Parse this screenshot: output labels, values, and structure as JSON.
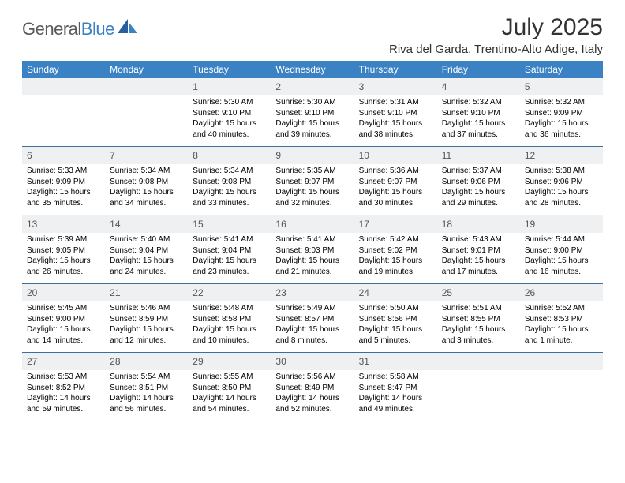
{
  "brand": {
    "part1": "General",
    "part2": "Blue"
  },
  "title": "July 2025",
  "location": "Riva del Garda, Trentino-Alto Adige, Italy",
  "colors": {
    "header_bg": "#3b82c4",
    "header_text": "#ffffff",
    "row_border": "#3b6fa0",
    "daynum_bg": "#eef0f2",
    "page_bg": "#ffffff"
  },
  "day_names": [
    "Sunday",
    "Monday",
    "Tuesday",
    "Wednesday",
    "Thursday",
    "Friday",
    "Saturday"
  ],
  "weeks": [
    [
      {
        "n": "",
        "sr": "",
        "ss": "",
        "dl": ""
      },
      {
        "n": "",
        "sr": "",
        "ss": "",
        "dl": ""
      },
      {
        "n": "1",
        "sr": "5:30 AM",
        "ss": "9:10 PM",
        "dl": "15 hours and 40 minutes."
      },
      {
        "n": "2",
        "sr": "5:30 AM",
        "ss": "9:10 PM",
        "dl": "15 hours and 39 minutes."
      },
      {
        "n": "3",
        "sr": "5:31 AM",
        "ss": "9:10 PM",
        "dl": "15 hours and 38 minutes."
      },
      {
        "n": "4",
        "sr": "5:32 AM",
        "ss": "9:10 PM",
        "dl": "15 hours and 37 minutes."
      },
      {
        "n": "5",
        "sr": "5:32 AM",
        "ss": "9:09 PM",
        "dl": "15 hours and 36 minutes."
      }
    ],
    [
      {
        "n": "6",
        "sr": "5:33 AM",
        "ss": "9:09 PM",
        "dl": "15 hours and 35 minutes."
      },
      {
        "n": "7",
        "sr": "5:34 AM",
        "ss": "9:08 PM",
        "dl": "15 hours and 34 minutes."
      },
      {
        "n": "8",
        "sr": "5:34 AM",
        "ss": "9:08 PM",
        "dl": "15 hours and 33 minutes."
      },
      {
        "n": "9",
        "sr": "5:35 AM",
        "ss": "9:07 PM",
        "dl": "15 hours and 32 minutes."
      },
      {
        "n": "10",
        "sr": "5:36 AM",
        "ss": "9:07 PM",
        "dl": "15 hours and 30 minutes."
      },
      {
        "n": "11",
        "sr": "5:37 AM",
        "ss": "9:06 PM",
        "dl": "15 hours and 29 minutes."
      },
      {
        "n": "12",
        "sr": "5:38 AM",
        "ss": "9:06 PM",
        "dl": "15 hours and 28 minutes."
      }
    ],
    [
      {
        "n": "13",
        "sr": "5:39 AM",
        "ss": "9:05 PM",
        "dl": "15 hours and 26 minutes."
      },
      {
        "n": "14",
        "sr": "5:40 AM",
        "ss": "9:04 PM",
        "dl": "15 hours and 24 minutes."
      },
      {
        "n": "15",
        "sr": "5:41 AM",
        "ss": "9:04 PM",
        "dl": "15 hours and 23 minutes."
      },
      {
        "n": "16",
        "sr": "5:41 AM",
        "ss": "9:03 PM",
        "dl": "15 hours and 21 minutes."
      },
      {
        "n": "17",
        "sr": "5:42 AM",
        "ss": "9:02 PM",
        "dl": "15 hours and 19 minutes."
      },
      {
        "n": "18",
        "sr": "5:43 AM",
        "ss": "9:01 PM",
        "dl": "15 hours and 17 minutes."
      },
      {
        "n": "19",
        "sr": "5:44 AM",
        "ss": "9:00 PM",
        "dl": "15 hours and 16 minutes."
      }
    ],
    [
      {
        "n": "20",
        "sr": "5:45 AM",
        "ss": "9:00 PM",
        "dl": "15 hours and 14 minutes."
      },
      {
        "n": "21",
        "sr": "5:46 AM",
        "ss": "8:59 PM",
        "dl": "15 hours and 12 minutes."
      },
      {
        "n": "22",
        "sr": "5:48 AM",
        "ss": "8:58 PM",
        "dl": "15 hours and 10 minutes."
      },
      {
        "n": "23",
        "sr": "5:49 AM",
        "ss": "8:57 PM",
        "dl": "15 hours and 8 minutes."
      },
      {
        "n": "24",
        "sr": "5:50 AM",
        "ss": "8:56 PM",
        "dl": "15 hours and 5 minutes."
      },
      {
        "n": "25",
        "sr": "5:51 AM",
        "ss": "8:55 PM",
        "dl": "15 hours and 3 minutes."
      },
      {
        "n": "26",
        "sr": "5:52 AM",
        "ss": "8:53 PM",
        "dl": "15 hours and 1 minute."
      }
    ],
    [
      {
        "n": "27",
        "sr": "5:53 AM",
        "ss": "8:52 PM",
        "dl": "14 hours and 59 minutes."
      },
      {
        "n": "28",
        "sr": "5:54 AM",
        "ss": "8:51 PM",
        "dl": "14 hours and 56 minutes."
      },
      {
        "n": "29",
        "sr": "5:55 AM",
        "ss": "8:50 PM",
        "dl": "14 hours and 54 minutes."
      },
      {
        "n": "30",
        "sr": "5:56 AM",
        "ss": "8:49 PM",
        "dl": "14 hours and 52 minutes."
      },
      {
        "n": "31",
        "sr": "5:58 AM",
        "ss": "8:47 PM",
        "dl": "14 hours and 49 minutes."
      },
      {
        "n": "",
        "sr": "",
        "ss": "",
        "dl": ""
      },
      {
        "n": "",
        "sr": "",
        "ss": "",
        "dl": ""
      }
    ]
  ],
  "labels": {
    "sunrise": "Sunrise: ",
    "sunset": "Sunset: ",
    "daylight": "Daylight: "
  }
}
